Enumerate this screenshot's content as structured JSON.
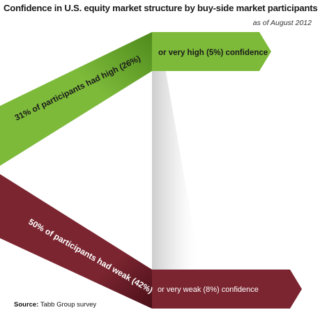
{
  "title": "Confidence in U.S. equity market structure by buy-side market participants",
  "subtitle": "as of August 2012",
  "source": {
    "label": "Source:",
    "text": "Tabb Group survey"
  },
  "colors": {
    "high": "#7dba3a",
    "high_dark": "#4e8a1c",
    "weak": "#7b2530",
    "weak_dark": "#4a0f18"
  },
  "chart_data": {
    "type": "flow",
    "groups": [
      {
        "name": "high",
        "label": "31% of  participants had high (26%)",
        "total_pct": 31,
        "main_pct": 26,
        "sub_label": "or very high (5%) confidence",
        "sub_pct": 5
      },
      {
        "name": "weak",
        "label": "50% of participants had weak (42%)",
        "total_pct": 50,
        "main_pct": 42,
        "sub_label": "or very weak (8%) confidence",
        "sub_pct": 8
      }
    ]
  }
}
